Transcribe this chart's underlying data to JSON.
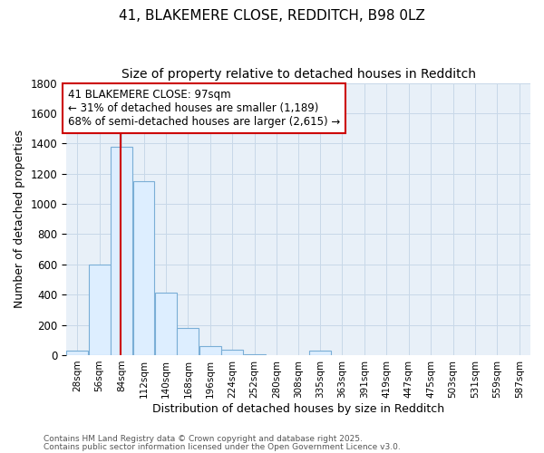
{
  "title1": "41, BLAKEMERE CLOSE, REDDITCH, B98 0LZ",
  "title2": "Size of property relative to detached houses in Redditch",
  "xlabel": "Distribution of detached houses by size in Redditch",
  "ylabel": "Number of detached properties",
  "bin_lefts": [
    28,
    56,
    84,
    112,
    140,
    168,
    196,
    224,
    252,
    280,
    308,
    335,
    363,
    391,
    419,
    447,
    475,
    503,
    531,
    559,
    587
  ],
  "bar_heights": [
    30,
    600,
    1380,
    1150,
    415,
    180,
    60,
    35,
    8,
    0,
    0,
    28,
    0,
    0,
    0,
    0,
    0,
    0,
    0,
    0,
    0
  ],
  "bar_color": "#DDEEFF",
  "bar_edge_color": "#7AAED6",
  "property_size": 97,
  "red_line_color": "#CC0000",
  "ylim": [
    0,
    1800
  ],
  "yticks": [
    0,
    200,
    400,
    600,
    800,
    1000,
    1200,
    1400,
    1600,
    1800
  ],
  "annotation_text": "41 BLAKEMERE CLOSE: 97sqm\n← 31% of detached houses are smaller (1,189)\n68% of semi-detached houses are larger (2,615) →",
  "annotation_box_color": "#FFFFFF",
  "annotation_box_edge": "#CC0000",
  "footer1": "Contains HM Land Registry data © Crown copyright and database right 2025.",
  "footer2": "Contains public sector information licensed under the Open Government Licence v3.0.",
  "bg_color": "#FFFFFF",
  "plot_bg_color": "#E8F0F8",
  "grid_color": "#C8D8E8",
  "title_fontsize": 11,
  "subtitle_fontsize": 10,
  "tick_label_fontsize": 7.5,
  "axis_label_fontsize": 9,
  "annotation_fontsize": 8.5,
  "footer_fontsize": 6.5
}
